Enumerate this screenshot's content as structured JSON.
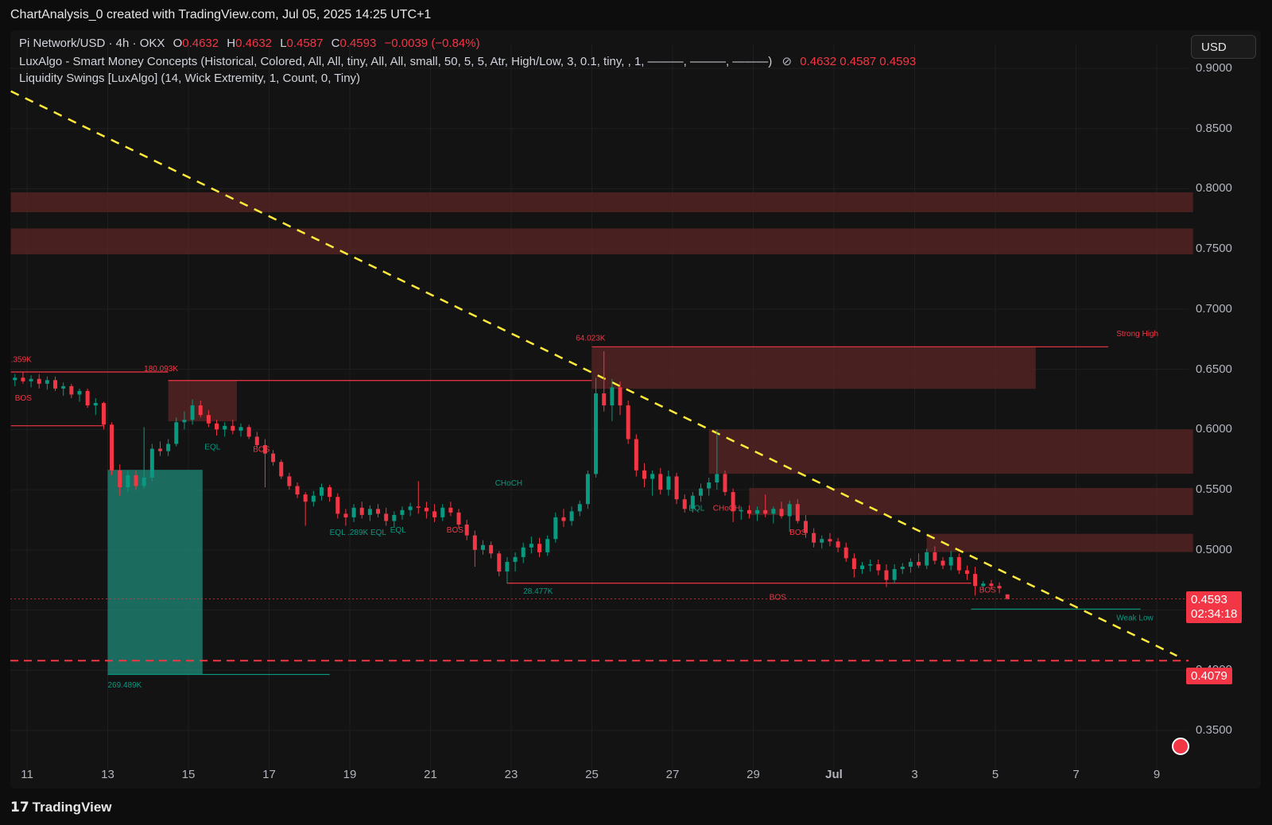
{
  "caption": "ChartAnalysis_0 created with TradingView.com, Jul 05, 2025 14:25 UTC+1",
  "legend": {
    "line1": {
      "symbol": "Pi Network/USD · 4h · OKX",
      "o_label": "O",
      "o_value": "0.4632",
      "h_label": "H",
      "h_value": "0.4632",
      "l_label": "L",
      "l_value": "0.4587",
      "c_label": "C",
      "c_value": "0.4593",
      "change": "−0.0039 (−0.84%)"
    },
    "line2": {
      "text": "LuxAlgo - Smart Money Concepts (Historical, Colored, All, All, tiny, All, All, small, 50, 5, 5, Atr, High/Low, 3, 0.1, tiny, , 1, ———, ———, ———)",
      "icon": "eye-off-icon",
      "values": "0.4632  0.4587  0.4593"
    },
    "line3": "Liquidity Swings [LuxAlgo] (14, Wick Extremity, 1, Count, 0, Tiny)"
  },
  "currency_button": "USD",
  "price_tags": {
    "last_price": "0.4593",
    "countdown": "02:34:18",
    "support_level": "0.4079"
  },
  "footer_brand": "TradingView",
  "colors": {
    "bull": "#089981",
    "bear": "#f23645",
    "zone": "#5b2626",
    "trendline": "#ffeb3b",
    "background": "#131313"
  },
  "chart_data": {
    "type": "candlestick",
    "symbol": "Pi Network/USD",
    "timeframe": "4h",
    "exchange": "OKX",
    "currency": "USD",
    "y_ticks": [
      "0.9000",
      "0.8500",
      "0.8000",
      "0.7500",
      "0.7000",
      "0.6500",
      "0.6000",
      "0.5500",
      "0.5000",
      "0.4500",
      "0.4000",
      "0.3500"
    ],
    "x_ticks": [
      "11",
      "13",
      "15",
      "17",
      "19",
      "21",
      "23",
      "25",
      "27",
      "29",
      "Jul",
      "3",
      "5",
      "7",
      "9"
    ],
    "ylim": [
      0.345,
      0.92
    ],
    "x_domain_days": [
      10.6,
      40.6
    ],
    "last_price": 0.4593,
    "support_level": 0.4079,
    "grid": true,
    "trendline": {
      "style": "dashed",
      "x_start_day": 10.6,
      "y_start": 0.881,
      "x_end_day": 39.5,
      "y_end": 0.412
    },
    "supply_zones": [
      {
        "x0": 10.6,
        "x1": 39.9,
        "y0": 0.7805,
        "y1": 0.797
      },
      {
        "x0": 10.6,
        "x1": 39.9,
        "y0": 0.7455,
        "y1": 0.767
      },
      {
        "x0": 25.5,
        "x1": 36.0,
        "y0": 0.6338,
        "y1": 0.6687
      },
      {
        "x0": 14.5,
        "x1": 16.2,
        "y0": 0.6068,
        "y1": 0.6407
      },
      {
        "x0": 27.9,
        "x1": 39.9,
        "y0": 0.5632,
        "y1": 0.6001
      },
      {
        "x0": 28.9,
        "x1": 39.9,
        "y0": 0.5289,
        "y1": 0.5514
      },
      {
        "x0": 33.3,
        "x1": 39.9,
        "y0": 0.4982,
        "y1": 0.5133
      },
      {
        "x0": 25.0,
        "x1": 25.5,
        "y0": 0.6338,
        "y1": 0.6687
      }
    ],
    "demand_zones": [
      {
        "x0": 13.0,
        "x1": 15.35,
        "y0": 0.3965,
        "y1": 0.5665
      }
    ],
    "structure_lines": [
      {
        "x0": 10.6,
        "x1": 14.5,
        "y": 0.6478,
        "color": "bear"
      },
      {
        "x0": 14.5,
        "x1": 25.0,
        "y": 0.6407,
        "color": "bear"
      },
      {
        "x0": 25.0,
        "x1": 37.8,
        "y": 0.6687,
        "color": "bear"
      },
      {
        "x0": 10.6,
        "x1": 12.9,
        "y": 0.6031,
        "color": "bear"
      },
      {
        "x0": 22.9,
        "x1": 34.4,
        "y": 0.4723,
        "color": "bear"
      },
      {
        "x0": 34.4,
        "x1": 38.6,
        "y": 0.4508,
        "color": "bull"
      },
      {
        "x0": 13.0,
        "x1": 18.5,
        "y": 0.3965,
        "color": "bull"
      }
    ],
    "labels": [
      {
        "text": "BOS",
        "x": 10.7,
        "y": 0.624,
        "color": "bear"
      },
      {
        "text": "180.093K",
        "x": 13.9,
        "y": 0.6485,
        "color": "bear"
      },
      {
        "text": ".359K",
        "x": 10.6,
        "y": 0.656,
        "color": "bear"
      },
      {
        "text": "EQL",
        "x": 15.4,
        "y": 0.5835,
        "color": "bull"
      },
      {
        "text": "BOS",
        "x": 16.6,
        "y": 0.5815,
        "color": "bear"
      },
      {
        "text": "EQL .289K EQL",
        "x": 18.5,
        "y": 0.5125,
        "color": "bull"
      },
      {
        "text": "EQL",
        "x": 20.0,
        "y": 0.5145,
        "color": "bull"
      },
      {
        "text": "BOS",
        "x": 21.4,
        "y": 0.5145,
        "color": "bear"
      },
      {
        "text": "CHoCH",
        "x": 22.6,
        "y": 0.5535,
        "color": "bull"
      },
      {
        "text": "28.477K",
        "x": 23.3,
        "y": 0.4635,
        "color": "bull"
      },
      {
        "text": "64.023K",
        "x": 24.6,
        "y": 0.674,
        "color": "bear"
      },
      {
        "text": "EQL",
        "x": 27.4,
        "y": 0.5325,
        "color": "bull"
      },
      {
        "text": "CHoCH",
        "x": 28.0,
        "y": 0.5325,
        "color": "bear"
      },
      {
        "text": "BOS",
        "x": 29.9,
        "y": 0.5125,
        "color": "bear"
      },
      {
        "text": "BOS",
        "x": 34.6,
        "y": 0.4645,
        "color": "bear"
      },
      {
        "text": "BOS",
        "x": 29.4,
        "y": 0.4585,
        "color": "bear"
      },
      {
        "text": "269.489K",
        "x": 13.0,
        "y": 0.3855,
        "color": "bull"
      },
      {
        "text": "Strong High",
        "x": 38.0,
        "y": 0.6776,
        "color": "bear"
      },
      {
        "text": "Weak Low",
        "x": 38.0,
        "y": 0.4415,
        "color": "bull"
      }
    ],
    "candles": [
      {
        "t": 10.7,
        "o": 0.641,
        "h": 0.646,
        "l": 0.636,
        "c": 0.643
      },
      {
        "t": 10.9,
        "o": 0.643,
        "h": 0.648,
        "l": 0.638,
        "c": 0.64
      },
      {
        "t": 11.1,
        "o": 0.64,
        "h": 0.645,
        "l": 0.635,
        "c": 0.642
      },
      {
        "t": 11.3,
        "o": 0.642,
        "h": 0.646,
        "l": 0.634,
        "c": 0.638
      },
      {
        "t": 11.5,
        "o": 0.638,
        "h": 0.644,
        "l": 0.633,
        "c": 0.641
      },
      {
        "t": 11.7,
        "o": 0.641,
        "h": 0.644,
        "l": 0.632,
        "c": 0.634
      },
      {
        "t": 11.9,
        "o": 0.634,
        "h": 0.639,
        "l": 0.628,
        "c": 0.636
      },
      {
        "t": 12.1,
        "o": 0.636,
        "h": 0.638,
        "l": 0.626,
        "c": 0.629
      },
      {
        "t": 12.3,
        "o": 0.629,
        "h": 0.634,
        "l": 0.623,
        "c": 0.632
      },
      {
        "t": 12.5,
        "o": 0.632,
        "h": 0.634,
        "l": 0.618,
        "c": 0.62
      },
      {
        "t": 12.7,
        "o": 0.62,
        "h": 0.626,
        "l": 0.612,
        "c": 0.622
      },
      {
        "t": 12.9,
        "o": 0.622,
        "h": 0.623,
        "l": 0.6,
        "c": 0.604
      },
      {
        "t": 13.1,
        "o": 0.604,
        "h": 0.606,
        "l": 0.562,
        "c": 0.566
      },
      {
        "t": 13.3,
        "o": 0.566,
        "h": 0.571,
        "l": 0.545,
        "c": 0.552
      },
      {
        "t": 13.5,
        "o": 0.552,
        "h": 0.566,
        "l": 0.548,
        "c": 0.562
      },
      {
        "t": 13.7,
        "o": 0.562,
        "h": 0.566,
        "l": 0.55,
        "c": 0.553
      },
      {
        "t": 13.9,
        "o": 0.553,
        "h": 0.602,
        "l": 0.551,
        "c": 0.56
      },
      {
        "t": 14.1,
        "o": 0.56,
        "h": 0.588,
        "l": 0.557,
        "c": 0.584
      },
      {
        "t": 14.3,
        "o": 0.584,
        "h": 0.59,
        "l": 0.578,
        "c": 0.582
      },
      {
        "t": 14.5,
        "o": 0.582,
        "h": 0.592,
        "l": 0.578,
        "c": 0.588
      },
      {
        "t": 14.7,
        "o": 0.588,
        "h": 0.61,
        "l": 0.586,
        "c": 0.606
      },
      {
        "t": 14.9,
        "o": 0.606,
        "h": 0.615,
        "l": 0.6,
        "c": 0.608
      },
      {
        "t": 15.1,
        "o": 0.608,
        "h": 0.625,
        "l": 0.604,
        "c": 0.62
      },
      {
        "t": 15.3,
        "o": 0.62,
        "h": 0.624,
        "l": 0.61,
        "c": 0.612
      },
      {
        "t": 15.5,
        "o": 0.612,
        "h": 0.616,
        "l": 0.602,
        "c": 0.605
      },
      {
        "t": 15.7,
        "o": 0.605,
        "h": 0.608,
        "l": 0.595,
        "c": 0.6
      },
      {
        "t": 15.9,
        "o": 0.6,
        "h": 0.606,
        "l": 0.594,
        "c": 0.603
      },
      {
        "t": 16.1,
        "o": 0.603,
        "h": 0.608,
        "l": 0.596,
        "c": 0.599
      },
      {
        "t": 16.3,
        "o": 0.599,
        "h": 0.605,
        "l": 0.594,
        "c": 0.602
      },
      {
        "t": 16.5,
        "o": 0.602,
        "h": 0.604,
        "l": 0.592,
        "c": 0.594
      },
      {
        "t": 16.7,
        "o": 0.594,
        "h": 0.598,
        "l": 0.585,
        "c": 0.587
      },
      {
        "t": 16.9,
        "o": 0.587,
        "h": 0.592,
        "l": 0.552,
        "c": 0.58
      },
      {
        "t": 17.1,
        "o": 0.58,
        "h": 0.583,
        "l": 0.57,
        "c": 0.573
      },
      {
        "t": 17.3,
        "o": 0.573,
        "h": 0.575,
        "l": 0.559,
        "c": 0.561
      },
      {
        "t": 17.5,
        "o": 0.561,
        "h": 0.564,
        "l": 0.55,
        "c": 0.553
      },
      {
        "t": 17.7,
        "o": 0.553,
        "h": 0.556,
        "l": 0.543,
        "c": 0.546
      },
      {
        "t": 17.9,
        "o": 0.546,
        "h": 0.548,
        "l": 0.52,
        "c": 0.54
      },
      {
        "t": 18.1,
        "o": 0.54,
        "h": 0.549,
        "l": 0.536,
        "c": 0.545
      },
      {
        "t": 18.3,
        "o": 0.545,
        "h": 0.555,
        "l": 0.541,
        "c": 0.552
      },
      {
        "t": 18.5,
        "o": 0.552,
        "h": 0.554,
        "l": 0.54,
        "c": 0.544
      },
      {
        "t": 18.7,
        "o": 0.544,
        "h": 0.547,
        "l": 0.526,
        "c": 0.53
      },
      {
        "t": 18.9,
        "o": 0.53,
        "h": 0.534,
        "l": 0.52,
        "c": 0.527
      },
      {
        "t": 19.1,
        "o": 0.527,
        "h": 0.538,
        "l": 0.523,
        "c": 0.535
      },
      {
        "t": 19.3,
        "o": 0.535,
        "h": 0.54,
        "l": 0.526,
        "c": 0.529
      },
      {
        "t": 19.5,
        "o": 0.529,
        "h": 0.537,
        "l": 0.524,
        "c": 0.534
      },
      {
        "t": 19.7,
        "o": 0.534,
        "h": 0.538,
        "l": 0.527,
        "c": 0.53
      },
      {
        "t": 19.9,
        "o": 0.53,
        "h": 0.535,
        "l": 0.52,
        "c": 0.524
      },
      {
        "t": 20.1,
        "o": 0.524,
        "h": 0.532,
        "l": 0.519,
        "c": 0.529
      },
      {
        "t": 20.3,
        "o": 0.529,
        "h": 0.536,
        "l": 0.525,
        "c": 0.533
      },
      {
        "t": 20.5,
        "o": 0.533,
        "h": 0.539,
        "l": 0.528,
        "c": 0.536
      },
      {
        "t": 20.7,
        "o": 0.536,
        "h": 0.557,
        "l": 0.53,
        "c": 0.535
      },
      {
        "t": 20.9,
        "o": 0.535,
        "h": 0.54,
        "l": 0.526,
        "c": 0.532
      },
      {
        "t": 21.1,
        "o": 0.532,
        "h": 0.538,
        "l": 0.523,
        "c": 0.527
      },
      {
        "t": 21.3,
        "o": 0.527,
        "h": 0.538,
        "l": 0.524,
        "c": 0.535
      },
      {
        "t": 21.5,
        "o": 0.535,
        "h": 0.54,
        "l": 0.528,
        "c": 0.531
      },
      {
        "t": 21.7,
        "o": 0.531,
        "h": 0.534,
        "l": 0.518,
        "c": 0.521
      },
      {
        "t": 21.9,
        "o": 0.521,
        "h": 0.525,
        "l": 0.508,
        "c": 0.512
      },
      {
        "t": 22.1,
        "o": 0.512,
        "h": 0.516,
        "l": 0.486,
        "c": 0.5
      },
      {
        "t": 22.3,
        "o": 0.5,
        "h": 0.508,
        "l": 0.496,
        "c": 0.504
      },
      {
        "t": 22.5,
        "o": 0.504,
        "h": 0.507,
        "l": 0.493,
        "c": 0.497
      },
      {
        "t": 22.7,
        "o": 0.497,
        "h": 0.499,
        "l": 0.478,
        "c": 0.482
      },
      {
        "t": 22.9,
        "o": 0.482,
        "h": 0.494,
        "l": 0.472,
        "c": 0.49
      },
      {
        "t": 23.1,
        "o": 0.49,
        "h": 0.498,
        "l": 0.482,
        "c": 0.494
      },
      {
        "t": 23.3,
        "o": 0.494,
        "h": 0.506,
        "l": 0.489,
        "c": 0.502
      },
      {
        "t": 23.5,
        "o": 0.502,
        "h": 0.511,
        "l": 0.497,
        "c": 0.505
      },
      {
        "t": 23.7,
        "o": 0.505,
        "h": 0.51,
        "l": 0.494,
        "c": 0.498
      },
      {
        "t": 23.9,
        "o": 0.498,
        "h": 0.512,
        "l": 0.495,
        "c": 0.509
      },
      {
        "t": 24.1,
        "o": 0.509,
        "h": 0.531,
        "l": 0.506,
        "c": 0.527
      },
      {
        "t": 24.3,
        "o": 0.527,
        "h": 0.534,
        "l": 0.519,
        "c": 0.524
      },
      {
        "t": 24.5,
        "o": 0.524,
        "h": 0.536,
        "l": 0.52,
        "c": 0.532
      },
      {
        "t": 24.7,
        "o": 0.532,
        "h": 0.541,
        "l": 0.528,
        "c": 0.538
      },
      {
        "t": 24.9,
        "o": 0.538,
        "h": 0.566,
        "l": 0.534,
        "c": 0.563
      },
      {
        "t": 25.1,
        "o": 0.563,
        "h": 0.643,
        "l": 0.56,
        "c": 0.63
      },
      {
        "t": 25.3,
        "o": 0.63,
        "h": 0.665,
        "l": 0.615,
        "c": 0.62
      },
      {
        "t": 25.5,
        "o": 0.62,
        "h": 0.642,
        "l": 0.607,
        "c": 0.635
      },
      {
        "t": 25.7,
        "o": 0.635,
        "h": 0.64,
        "l": 0.612,
        "c": 0.62
      },
      {
        "t": 25.9,
        "o": 0.62,
        "h": 0.624,
        "l": 0.588,
        "c": 0.592
      },
      {
        "t": 26.1,
        "o": 0.592,
        "h": 0.596,
        "l": 0.561,
        "c": 0.566
      },
      {
        "t": 26.3,
        "o": 0.566,
        "h": 0.572,
        "l": 0.552,
        "c": 0.559
      },
      {
        "t": 26.5,
        "o": 0.559,
        "h": 0.566,
        "l": 0.545,
        "c": 0.563
      },
      {
        "t": 26.7,
        "o": 0.563,
        "h": 0.568,
        "l": 0.546,
        "c": 0.55
      },
      {
        "t": 26.9,
        "o": 0.55,
        "h": 0.566,
        "l": 0.545,
        "c": 0.561
      },
      {
        "t": 27.1,
        "o": 0.561,
        "h": 0.564,
        "l": 0.538,
        "c": 0.542
      },
      {
        "t": 27.3,
        "o": 0.542,
        "h": 0.546,
        "l": 0.531,
        "c": 0.534
      },
      {
        "t": 27.5,
        "o": 0.534,
        "h": 0.548,
        "l": 0.531,
        "c": 0.545
      },
      {
        "t": 27.7,
        "o": 0.545,
        "h": 0.555,
        "l": 0.54,
        "c": 0.551
      },
      {
        "t": 27.9,
        "o": 0.551,
        "h": 0.56,
        "l": 0.545,
        "c": 0.556
      },
      {
        "t": 28.1,
        "o": 0.556,
        "h": 0.6,
        "l": 0.55,
        "c": 0.563
      },
      {
        "t": 28.3,
        "o": 0.563,
        "h": 0.566,
        "l": 0.545,
        "c": 0.548
      },
      {
        "t": 28.5,
        "o": 0.548,
        "h": 0.551,
        "l": 0.523,
        "c": 0.532
      },
      {
        "t": 28.7,
        "o": 0.532,
        "h": 0.536,
        "l": 0.525,
        "c": 0.533
      },
      {
        "t": 28.9,
        "o": 0.533,
        "h": 0.537,
        "l": 0.526,
        "c": 0.53
      },
      {
        "t": 29.1,
        "o": 0.53,
        "h": 0.536,
        "l": 0.524,
        "c": 0.533
      },
      {
        "t": 29.3,
        "o": 0.533,
        "h": 0.546,
        "l": 0.527,
        "c": 0.53
      },
      {
        "t": 29.5,
        "o": 0.53,
        "h": 0.536,
        "l": 0.522,
        "c": 0.534
      },
      {
        "t": 29.7,
        "o": 0.534,
        "h": 0.54,
        "l": 0.526,
        "c": 0.528
      },
      {
        "t": 29.9,
        "o": 0.528,
        "h": 0.541,
        "l": 0.515,
        "c": 0.538
      },
      {
        "t": 30.1,
        "o": 0.538,
        "h": 0.542,
        "l": 0.522,
        "c": 0.524
      },
      {
        "t": 30.3,
        "o": 0.524,
        "h": 0.529,
        "l": 0.51,
        "c": 0.514
      },
      {
        "t": 30.5,
        "o": 0.514,
        "h": 0.518,
        "l": 0.502,
        "c": 0.506
      },
      {
        "t": 30.7,
        "o": 0.506,
        "h": 0.512,
        "l": 0.501,
        "c": 0.509
      },
      {
        "t": 30.9,
        "o": 0.509,
        "h": 0.514,
        "l": 0.503,
        "c": 0.507
      },
      {
        "t": 31.1,
        "o": 0.507,
        "h": 0.51,
        "l": 0.498,
        "c": 0.502
      },
      {
        "t": 31.3,
        "o": 0.502,
        "h": 0.506,
        "l": 0.49,
        "c": 0.493
      },
      {
        "t": 31.5,
        "o": 0.493,
        "h": 0.497,
        "l": 0.477,
        "c": 0.484
      },
      {
        "t": 31.7,
        "o": 0.484,
        "h": 0.49,
        "l": 0.48,
        "c": 0.487
      },
      {
        "t": 31.9,
        "o": 0.487,
        "h": 0.492,
        "l": 0.482,
        "c": 0.488
      },
      {
        "t": 32.1,
        "o": 0.488,
        "h": 0.492,
        "l": 0.479,
        "c": 0.483
      },
      {
        "t": 32.3,
        "o": 0.483,
        "h": 0.488,
        "l": 0.469,
        "c": 0.475
      },
      {
        "t": 32.5,
        "o": 0.475,
        "h": 0.488,
        "l": 0.472,
        "c": 0.484
      },
      {
        "t": 32.7,
        "o": 0.484,
        "h": 0.489,
        "l": 0.48,
        "c": 0.486
      },
      {
        "t": 32.9,
        "o": 0.486,
        "h": 0.493,
        "l": 0.481,
        "c": 0.49
      },
      {
        "t": 33.1,
        "o": 0.49,
        "h": 0.497,
        "l": 0.485,
        "c": 0.487
      },
      {
        "t": 33.3,
        "o": 0.487,
        "h": 0.501,
        "l": 0.484,
        "c": 0.498
      },
      {
        "t": 33.5,
        "o": 0.498,
        "h": 0.503,
        "l": 0.488,
        "c": 0.491
      },
      {
        "t": 33.7,
        "o": 0.491,
        "h": 0.494,
        "l": 0.484,
        "c": 0.487
      },
      {
        "t": 33.9,
        "o": 0.487,
        "h": 0.499,
        "l": 0.483,
        "c": 0.494
      },
      {
        "t": 34.1,
        "o": 0.494,
        "h": 0.497,
        "l": 0.48,
        "c": 0.483
      },
      {
        "t": 34.3,
        "o": 0.483,
        "h": 0.487,
        "l": 0.475,
        "c": 0.48
      },
      {
        "t": 34.5,
        "o": 0.48,
        "h": 0.486,
        "l": 0.462,
        "c": 0.47
      },
      {
        "t": 34.7,
        "o": 0.47,
        "h": 0.474,
        "l": 0.466,
        "c": 0.472
      },
      {
        "t": 34.9,
        "o": 0.472,
        "h": 0.475,
        "l": 0.467,
        "c": 0.47
      },
      {
        "t": 35.1,
        "o": 0.47,
        "h": 0.473,
        "l": 0.464,
        "c": 0.468
      },
      {
        "t": 35.3,
        "o": 0.463,
        "h": 0.4632,
        "l": 0.4587,
        "c": 0.4593
      }
    ]
  }
}
